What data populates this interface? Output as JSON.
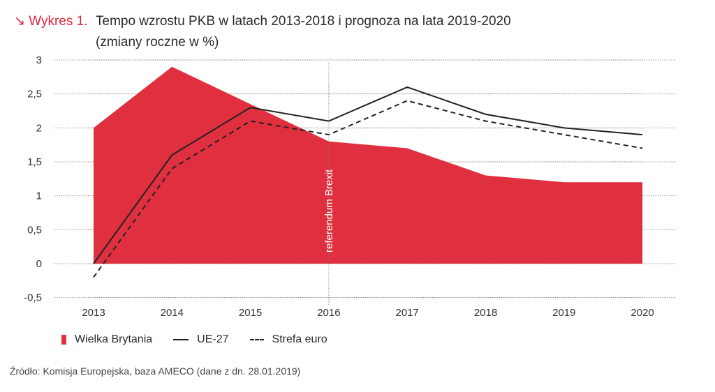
{
  "header": {
    "label": "↘ Wykres 1.",
    "title": "Tempo wzrostu PKB w latach 2013-2018 i prognoza na lata 2019-2020",
    "subtitle": "(zmiany roczne w %)"
  },
  "chart_data": {
    "type": "area",
    "title": "Tempo wzrostu PKB w latach 2013-2018 i prognoza na lata 2019-2020 (zmiany roczne w %)",
    "xlabel": "",
    "ylabel": "",
    "categories": [
      "2013",
      "2014",
      "2015",
      "2016",
      "2017",
      "2018",
      "2019",
      "2020"
    ],
    "ylim": [
      -0.5,
      3
    ],
    "yticks": [
      3,
      2.5,
      2,
      1.5,
      1,
      0.5,
      0,
      -0.5
    ],
    "ytick_labels": [
      "3",
      "2,5",
      "2",
      "1,5",
      "1",
      "0,5",
      "0",
      "-0,5"
    ],
    "grid": "horizontal dotted",
    "legend_position": "bottom-left",
    "series": [
      {
        "name": "Wielka Brytania",
        "style": "area",
        "color": "#e0303f",
        "values": [
          2.0,
          2.9,
          2.35,
          1.8,
          1.7,
          1.3,
          1.2,
          1.2
        ]
      },
      {
        "name": "UE-27",
        "style": "solid",
        "color": "#222222",
        "values": [
          0.0,
          1.6,
          2.3,
          2.1,
          2.6,
          2.2,
          2.0,
          1.9
        ]
      },
      {
        "name": "Strefa euro",
        "style": "dashed",
        "color": "#222222",
        "values": [
          -0.2,
          1.4,
          2.1,
          1.9,
          2.4,
          2.1,
          1.9,
          1.7
        ]
      }
    ],
    "annotations": [
      {
        "type": "vertical-line",
        "x": "2016",
        "text": "referendum Brexit"
      }
    ]
  },
  "legend": {
    "items": [
      {
        "label": "Wielka Brytania"
      },
      {
        "label": "UE-27"
      },
      {
        "label": "Strefa euro"
      }
    ]
  },
  "footer": {
    "source": "Źródło: Komisja Europejska, baza AMECO (dane z dn. 28.01.2019)"
  }
}
